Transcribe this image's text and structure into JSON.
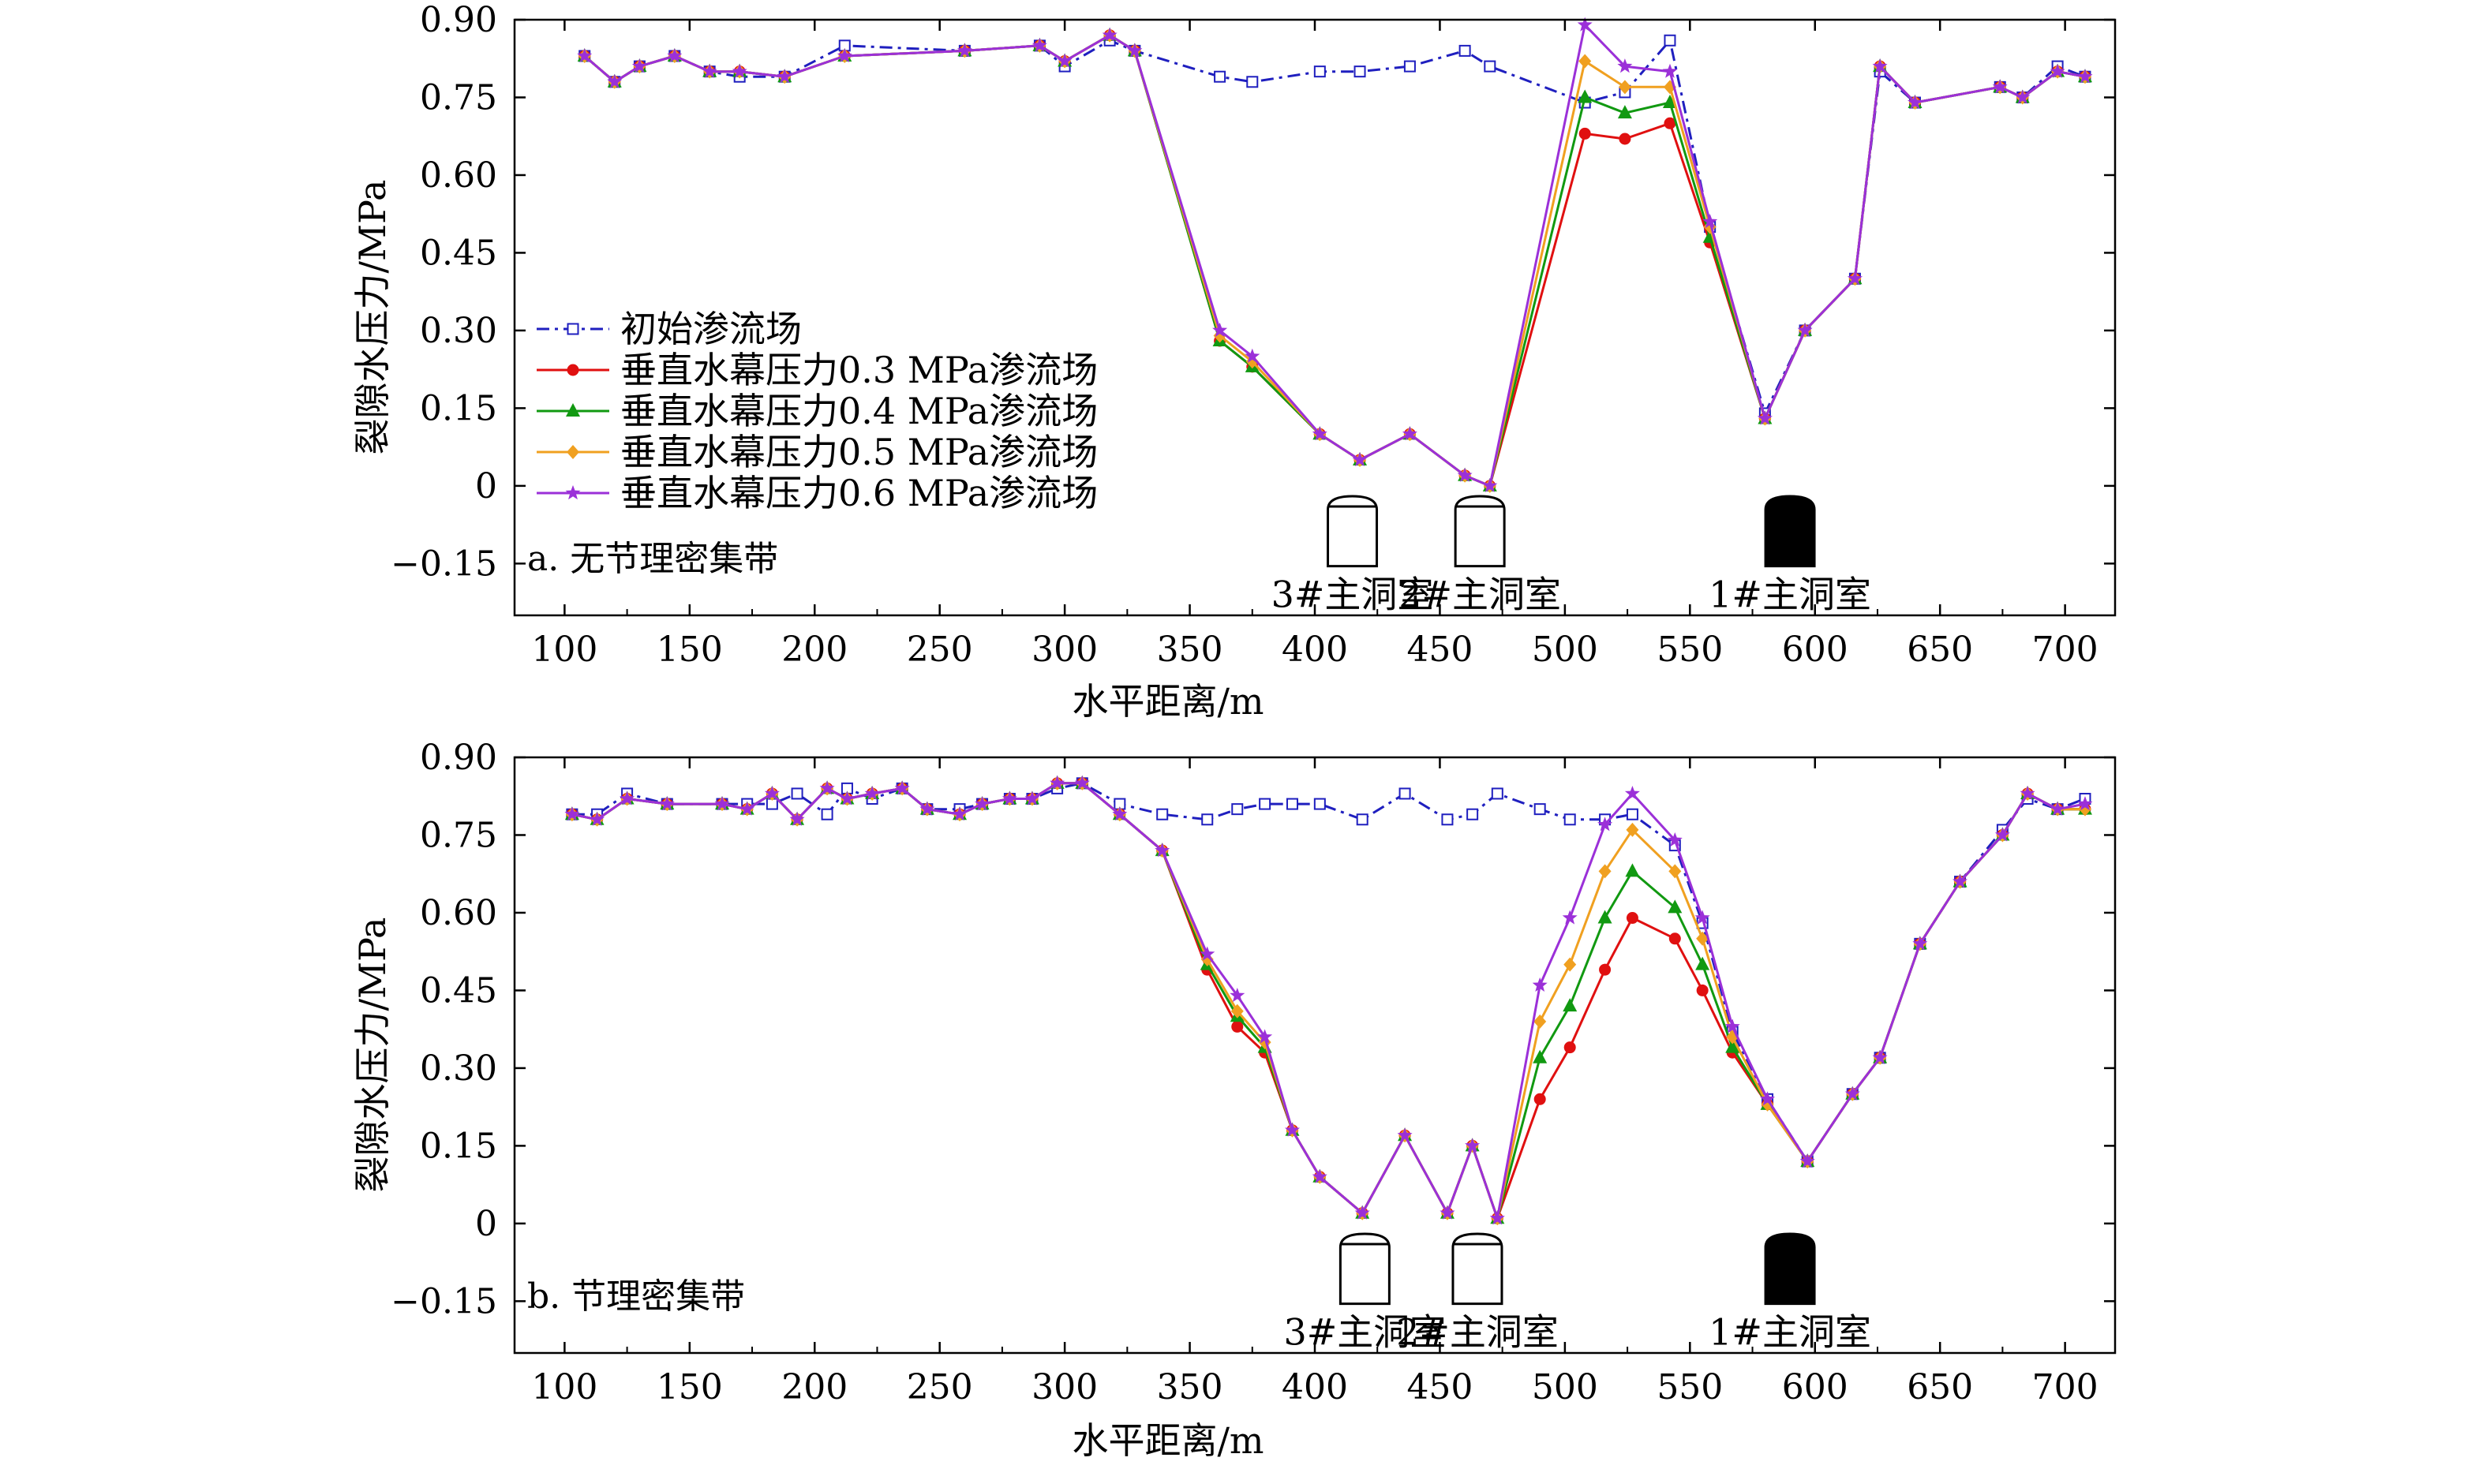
{
  "chart_data": [
    {
      "type": "line",
      "title": "",
      "panel_label": "a. 无节理密集带",
      "xlabel": "水平距离/m",
      "ylabel": "裂隙水压力/MPa",
      "xlim": [
        80,
        720
      ],
      "ylim": [
        -0.25,
        0.9
      ],
      "xticks": [
        100,
        150,
        200,
        250,
        300,
        350,
        400,
        450,
        500,
        550,
        600,
        650,
        700
      ],
      "yticks": [
        0.9,
        0.75,
        0.6,
        0.45,
        0.3,
        0.15,
        0,
        -0.15
      ],
      "ytick_labels": [
        "0.90",
        "0.75",
        "0.60",
        "0.45",
        "0.30",
        "0.15",
        "0",
        "−0.15"
      ],
      "legend_position": "middle-left",
      "caverns": [
        {
          "label": "3#主洞室",
          "x": 415,
          "style": "outline"
        },
        {
          "label": "2#主洞室",
          "x": 466,
          "style": "outline"
        },
        {
          "label": "1#主洞室",
          "x": 590,
          "style": "filled"
        }
      ],
      "series": [
        {
          "name": "初始渗流场",
          "color": "#1f1fbf",
          "marker": "square-open",
          "dash": "dashdot",
          "x": [
            108,
            120,
            130,
            144,
            158,
            170,
            188,
            212,
            260,
            290,
            300,
            318,
            328,
            362,
            375,
            402,
            418,
            438,
            460,
            470,
            508,
            524,
            542,
            558,
            580,
            596,
            616,
            626,
            640,
            674,
            683,
            697,
            708
          ],
          "y": [
            0.83,
            0.78,
            0.81,
            0.83,
            0.8,
            0.79,
            0.79,
            0.85,
            0.84,
            0.85,
            0.81,
            0.86,
            0.84,
            0.79,
            0.78,
            0.8,
            0.8,
            0.81,
            0.84,
            0.81,
            0.74,
            0.76,
            0.86,
            0.5,
            0.14,
            0.3,
            0.4,
            0.8,
            0.74,
            0.77,
            0.75,
            0.81,
            0.79
          ]
        },
        {
          "name": "垂直水幕压力0.3 MPa渗流场",
          "color": "#e01010",
          "marker": "circle",
          "x": [
            108,
            120,
            130,
            144,
            158,
            170,
            188,
            212,
            260,
            290,
            300,
            318,
            328,
            362,
            375,
            402,
            418,
            438,
            460,
            470,
            508,
            524,
            542,
            558,
            580,
            596,
            616,
            626,
            640,
            674,
            683,
            697,
            708
          ],
          "y": [
            0.83,
            0.78,
            0.81,
            0.83,
            0.8,
            0.8,
            0.79,
            0.83,
            0.84,
            0.85,
            0.82,
            0.87,
            0.84,
            0.28,
            0.23,
            0.1,
            0.05,
            0.1,
            0.02,
            0.0,
            0.68,
            0.67,
            0.7,
            0.47,
            0.13,
            0.3,
            0.4,
            0.81,
            0.74,
            0.77,
            0.75,
            0.8,
            0.79
          ]
        },
        {
          "name": "垂直水幕压力0.4 MPa渗流场",
          "color": "#119911",
          "marker": "triangle",
          "x": [
            108,
            120,
            130,
            144,
            158,
            170,
            188,
            212,
            260,
            290,
            300,
            318,
            328,
            362,
            375,
            402,
            418,
            438,
            460,
            470,
            508,
            524,
            542,
            558,
            580,
            596,
            616,
            626,
            640,
            674,
            683,
            697,
            708
          ],
          "y": [
            0.83,
            0.78,
            0.81,
            0.83,
            0.8,
            0.8,
            0.79,
            0.83,
            0.84,
            0.85,
            0.82,
            0.87,
            0.84,
            0.28,
            0.23,
            0.1,
            0.05,
            0.1,
            0.02,
            0.0,
            0.75,
            0.72,
            0.74,
            0.48,
            0.13,
            0.3,
            0.4,
            0.81,
            0.74,
            0.77,
            0.75,
            0.8,
            0.79
          ]
        },
        {
          "name": "垂直水幕压力0.5 MPa渗流场",
          "color": "#f0a020",
          "marker": "diamond",
          "x": [
            108,
            120,
            130,
            144,
            158,
            170,
            188,
            212,
            260,
            290,
            300,
            318,
            328,
            362,
            375,
            402,
            418,
            438,
            460,
            470,
            508,
            524,
            542,
            558,
            580,
            596,
            616,
            626,
            640,
            674,
            683,
            697,
            708
          ],
          "y": [
            0.83,
            0.78,
            0.81,
            0.83,
            0.8,
            0.8,
            0.79,
            0.83,
            0.84,
            0.85,
            0.82,
            0.87,
            0.84,
            0.29,
            0.24,
            0.1,
            0.05,
            0.1,
            0.02,
            0.0,
            0.82,
            0.77,
            0.77,
            0.5,
            0.13,
            0.3,
            0.4,
            0.81,
            0.74,
            0.77,
            0.75,
            0.8,
            0.79
          ]
        },
        {
          "name": "垂直水幕压力0.6 MPa渗流场",
          "color": "#9b30d8",
          "marker": "star",
          "x": [
            108,
            120,
            130,
            144,
            158,
            170,
            188,
            212,
            260,
            290,
            300,
            318,
            328,
            362,
            375,
            402,
            418,
            438,
            460,
            470,
            508,
            524,
            542,
            558,
            580,
            596,
            616,
            626,
            640,
            674,
            683,
            697,
            708
          ],
          "y": [
            0.83,
            0.78,
            0.81,
            0.83,
            0.8,
            0.8,
            0.79,
            0.83,
            0.84,
            0.85,
            0.82,
            0.87,
            0.84,
            0.3,
            0.25,
            0.1,
            0.05,
            0.1,
            0.02,
            0.0,
            0.89,
            0.81,
            0.8,
            0.51,
            0.13,
            0.3,
            0.4,
            0.81,
            0.74,
            0.77,
            0.75,
            0.8,
            0.79
          ]
        }
      ]
    },
    {
      "type": "line",
      "title": "",
      "panel_label": "b. 节理密集带",
      "xlabel": "水平距离/m",
      "ylabel": "裂隙水压力/MPa",
      "xlim": [
        80,
        720
      ],
      "ylim": [
        -0.25,
        0.9
      ],
      "xticks": [
        100,
        150,
        200,
        250,
        300,
        350,
        400,
        450,
        500,
        550,
        600,
        650,
        700
      ],
      "yticks": [
        0.9,
        0.75,
        0.6,
        0.45,
        0.3,
        0.15,
        0,
        -0.15
      ],
      "ytick_labels": [
        "0.90",
        "0.75",
        "0.60",
        "0.45",
        "0.30",
        "0.15",
        "0",
        "−0.15"
      ],
      "caverns": [
        {
          "label": "3#主洞室",
          "x": 420,
          "style": "outline"
        },
        {
          "label": "2#主洞室",
          "x": 465,
          "style": "outline"
        },
        {
          "label": "1#主洞室",
          "x": 590,
          "style": "filled"
        }
      ],
      "series": [
        {
          "name": "初始渗流场",
          "color": "#1f1fbf",
          "marker": "square-open",
          "dash": "dashdot",
          "x": [
            103,
            113,
            125,
            141,
            163,
            173,
            183,
            193,
            205,
            213,
            223,
            235,
            245,
            258,
            267,
            278,
            287,
            297,
            307,
            322,
            339,
            357,
            369,
            380,
            391,
            402,
            419,
            436,
            453,
            463,
            473,
            490,
            502,
            516,
            527,
            544,
            555,
            567,
            581,
            597,
            615,
            626,
            642,
            658,
            675,
            685,
            697,
            708
          ],
          "y": [
            0.79,
            0.79,
            0.83,
            0.81,
            0.81,
            0.81,
            0.81,
            0.83,
            0.79,
            0.84,
            0.82,
            0.84,
            0.8,
            0.8,
            0.81,
            0.82,
            0.82,
            0.84,
            0.85,
            0.81,
            0.79,
            0.78,
            0.8,
            0.81,
            0.81,
            0.81,
            0.78,
            0.83,
            0.78,
            0.79,
            0.83,
            0.8,
            0.78,
            0.78,
            0.79,
            0.73,
            0.58,
            0.37,
            0.24,
            0.12,
            0.25,
            0.32,
            0.54,
            0.66,
            0.76,
            0.82,
            0.8,
            0.82
          ]
        },
        {
          "name": "垂直水幕压力0.3 MPa渗流场",
          "color": "#e01010",
          "marker": "circle",
          "x": [
            103,
            113,
            125,
            141,
            163,
            173,
            183,
            193,
            205,
            213,
            223,
            235,
            245,
            258,
            267,
            278,
            287,
            297,
            307,
            322,
            339,
            357,
            369,
            380,
            391,
            402,
            419,
            436,
            453,
            463,
            473,
            490,
            502,
            516,
            527,
            544,
            555,
            567,
            581,
            597,
            615,
            626,
            642,
            658,
            675,
            685,
            697,
            708
          ],
          "y": [
            0.79,
            0.78,
            0.82,
            0.81,
            0.81,
            0.8,
            0.83,
            0.78,
            0.84,
            0.82,
            0.83,
            0.84,
            0.8,
            0.79,
            0.81,
            0.82,
            0.82,
            0.85,
            0.85,
            0.79,
            0.72,
            0.49,
            0.38,
            0.33,
            0.18,
            0.09,
            0.02,
            0.17,
            0.02,
            0.15,
            0.01,
            0.24,
            0.34,
            0.49,
            0.59,
            0.55,
            0.45,
            0.33,
            0.23,
            0.12,
            0.25,
            0.32,
            0.54,
            0.66,
            0.75,
            0.83,
            0.8,
            0.8
          ]
        },
        {
          "name": "垂直水幕压力0.4 MPa渗流场",
          "color": "#119911",
          "marker": "triangle",
          "x": [
            103,
            113,
            125,
            141,
            163,
            173,
            183,
            193,
            205,
            213,
            223,
            235,
            245,
            258,
            267,
            278,
            287,
            297,
            307,
            322,
            339,
            357,
            369,
            380,
            391,
            402,
            419,
            436,
            453,
            463,
            473,
            490,
            502,
            516,
            527,
            544,
            555,
            567,
            581,
            597,
            615,
            626,
            642,
            658,
            675,
            685,
            697,
            708
          ],
          "y": [
            0.79,
            0.78,
            0.82,
            0.81,
            0.81,
            0.8,
            0.83,
            0.78,
            0.84,
            0.82,
            0.83,
            0.84,
            0.8,
            0.79,
            0.81,
            0.82,
            0.82,
            0.85,
            0.85,
            0.79,
            0.72,
            0.5,
            0.4,
            0.34,
            0.18,
            0.09,
            0.02,
            0.17,
            0.02,
            0.15,
            0.01,
            0.32,
            0.42,
            0.59,
            0.68,
            0.61,
            0.5,
            0.34,
            0.23,
            0.12,
            0.25,
            0.32,
            0.54,
            0.66,
            0.75,
            0.83,
            0.8,
            0.8
          ]
        },
        {
          "name": "垂直水幕压力0.5 MPa渗流场",
          "color": "#f0a020",
          "marker": "diamond",
          "x": [
            103,
            113,
            125,
            141,
            163,
            173,
            183,
            193,
            205,
            213,
            223,
            235,
            245,
            258,
            267,
            278,
            287,
            297,
            307,
            322,
            339,
            357,
            369,
            380,
            391,
            402,
            419,
            436,
            453,
            463,
            473,
            490,
            502,
            516,
            527,
            544,
            555,
            567,
            581,
            597,
            615,
            626,
            642,
            658,
            675,
            685,
            697,
            708
          ],
          "y": [
            0.79,
            0.78,
            0.82,
            0.81,
            0.81,
            0.8,
            0.83,
            0.78,
            0.84,
            0.82,
            0.83,
            0.84,
            0.8,
            0.79,
            0.81,
            0.82,
            0.82,
            0.85,
            0.85,
            0.79,
            0.72,
            0.51,
            0.41,
            0.35,
            0.18,
            0.09,
            0.02,
            0.17,
            0.02,
            0.15,
            0.01,
            0.39,
            0.5,
            0.68,
            0.76,
            0.68,
            0.55,
            0.36,
            0.23,
            0.12,
            0.25,
            0.32,
            0.54,
            0.66,
            0.75,
            0.83,
            0.8,
            0.8
          ]
        },
        {
          "name": "垂直水幕压力0.6 MPa渗流场",
          "color": "#9b30d8",
          "marker": "star",
          "x": [
            103,
            113,
            125,
            141,
            163,
            173,
            183,
            193,
            205,
            213,
            223,
            235,
            245,
            258,
            267,
            278,
            287,
            297,
            307,
            322,
            339,
            357,
            369,
            380,
            391,
            402,
            419,
            436,
            453,
            463,
            473,
            490,
            502,
            516,
            527,
            544,
            555,
            567,
            581,
            597,
            615,
            626,
            642,
            658,
            675,
            685,
            697,
            708
          ],
          "y": [
            0.79,
            0.78,
            0.82,
            0.81,
            0.81,
            0.8,
            0.83,
            0.78,
            0.84,
            0.82,
            0.83,
            0.84,
            0.8,
            0.79,
            0.81,
            0.82,
            0.82,
            0.85,
            0.85,
            0.79,
            0.72,
            0.52,
            0.44,
            0.36,
            0.18,
            0.09,
            0.02,
            0.17,
            0.02,
            0.15,
            0.01,
            0.46,
            0.59,
            0.77,
            0.83,
            0.74,
            0.59,
            0.38,
            0.24,
            0.12,
            0.25,
            0.32,
            0.54,
            0.66,
            0.75,
            0.83,
            0.8,
            0.81
          ]
        }
      ]
    }
  ]
}
